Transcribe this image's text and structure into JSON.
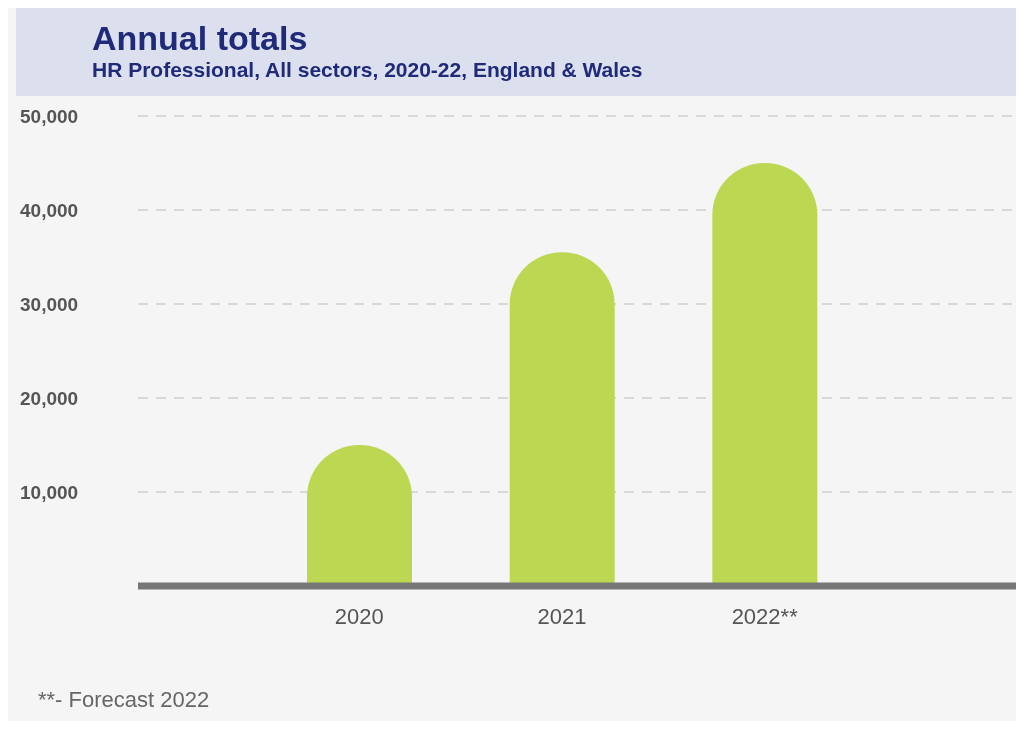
{
  "chart_data": {
    "type": "bar",
    "title": "Annual totals",
    "subtitle": "HR Professional, All sectors, 2020-22, England & Wales",
    "categories": [
      "2020",
      "2021",
      "2022**"
    ],
    "values": [
      15000,
      35500,
      45000
    ],
    "color": "#bcd752",
    "ylim": [
      0,
      50000
    ],
    "yticks": [
      {
        "value": 10000,
        "label": "10,000"
      },
      {
        "value": 20000,
        "label": "20,000"
      },
      {
        "value": 30000,
        "label": "30,000"
      },
      {
        "value": 40000,
        "label": "40,000"
      },
      {
        "value": 50000,
        "label": "50,000"
      }
    ],
    "grid": "y",
    "annotations": [
      "**- Forecast 2022"
    ]
  }
}
